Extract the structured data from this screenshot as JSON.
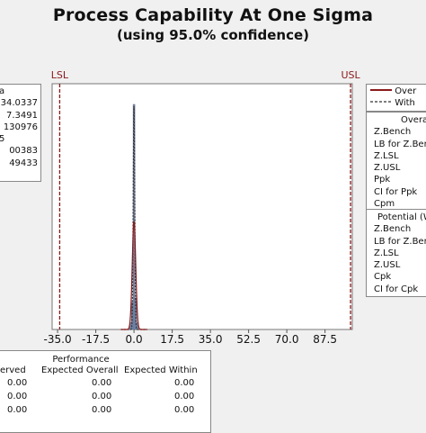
{
  "chart_data": {
    "type": "histogram",
    "title": "Process Capability At One Sigma",
    "subtitle": "(using 95.0% confidence)",
    "x_ticks": [
      -35.0,
      -17.5,
      0.0,
      17.5,
      35.0,
      52.5,
      70.0,
      87.5
    ],
    "x_tick_labels": [
      "-35.0",
      "-17.5",
      "0.0",
      "17.5",
      "35.0",
      "52.5",
      "70.0",
      "87.5"
    ],
    "xlim": [
      -37.5,
      100
    ],
    "lsl": {
      "label": "LSL",
      "value": -34.0337
    },
    "usl": {
      "label": "USL",
      "value": 99.2
    },
    "bins": [
      {
        "x": -1.6,
        "value": 0.03
      },
      {
        "x": -0.8,
        "value": 0.12
      },
      {
        "x": 0.0,
        "value": 1.0
      },
      {
        "x": 0.8,
        "value": 0.14
      },
      {
        "x": 1.6,
        "value": 0.03
      }
    ],
    "colors": {
      "bar": "#7a8fb5",
      "overall_curve": "#8b1a1a",
      "spec_line": "#8b1a1a",
      "within_curve": "#333333"
    }
  },
  "process_data_box": {
    "lines": [
      "a",
      "34.0337",
      "",
      "7.3491",
      "130976",
      "5",
      "00383",
      "49433"
    ]
  },
  "legend": {
    "items": [
      {
        "label": "Over",
        "style": "solid"
      },
      {
        "label": "With",
        "style": "dashed"
      }
    ]
  },
  "overall_box": {
    "heading": "Overa",
    "rows": [
      "Z.Bench",
      "LB for Z.Benc",
      "Z.LSL",
      "Z.USL",
      "Ppk",
      "CI for Ppk",
      "Cpm"
    ]
  },
  "potential_box": {
    "heading": "Potential (W",
    "rows": [
      "Z.Bench",
      "LB for Z.Benc",
      "Z.LSL",
      "Z.USL",
      "Cpk",
      "CI for Cpk"
    ]
  },
  "performance": {
    "title": "Performance",
    "headers": [
      "erved",
      "Expected Overall",
      "Expected Within"
    ],
    "rows": [
      [
        "0.00",
        "0.00",
        "0.00"
      ],
      [
        "0.00",
        "0.00",
        "0.00"
      ],
      [
        "0.00",
        "0.00",
        "0.00"
      ]
    ]
  }
}
